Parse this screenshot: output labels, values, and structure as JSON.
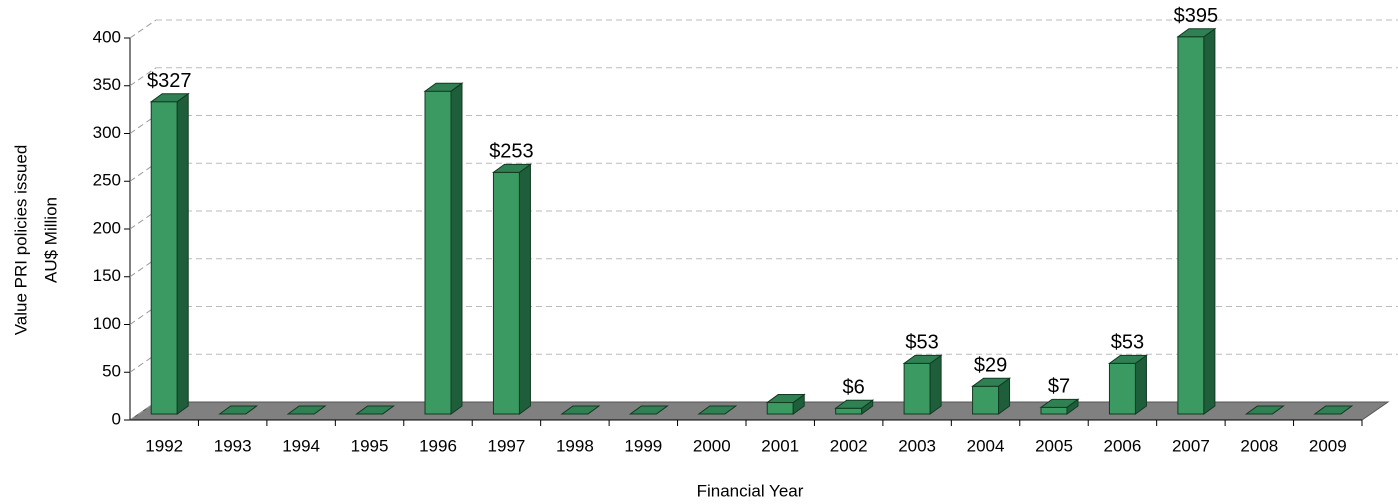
{
  "chart_data": {
    "type": "bar3d",
    "xlabel": "Financial Year",
    "ylabel": [
      "Value PRI policies issued",
      "AU$ Million"
    ],
    "categories": [
      "1992",
      "1993",
      "1994",
      "1995",
      "1996",
      "1997",
      "1998",
      "1999",
      "2000",
      "2001",
      "2002",
      "2003",
      "2004",
      "2005",
      "2006",
      "2007",
      "2008",
      "2009"
    ],
    "values": [
      327,
      0,
      0,
      0,
      338,
      253,
      0,
      0,
      0,
      12,
      6,
      53,
      29,
      7,
      53,
      395,
      0,
      0
    ],
    "value_labels": [
      "$327",
      null,
      null,
      null,
      null,
      "$253",
      null,
      null,
      null,
      null,
      "$6",
      "$53",
      "$29",
      "$7",
      "$53",
      "$395",
      null,
      null
    ],
    "color": "#3a9a62",
    "ylim": [
      0,
      400
    ],
    "yticks": [
      0,
      50,
      100,
      150,
      200,
      250,
      300,
      350,
      400
    ],
    "grid": true
  }
}
